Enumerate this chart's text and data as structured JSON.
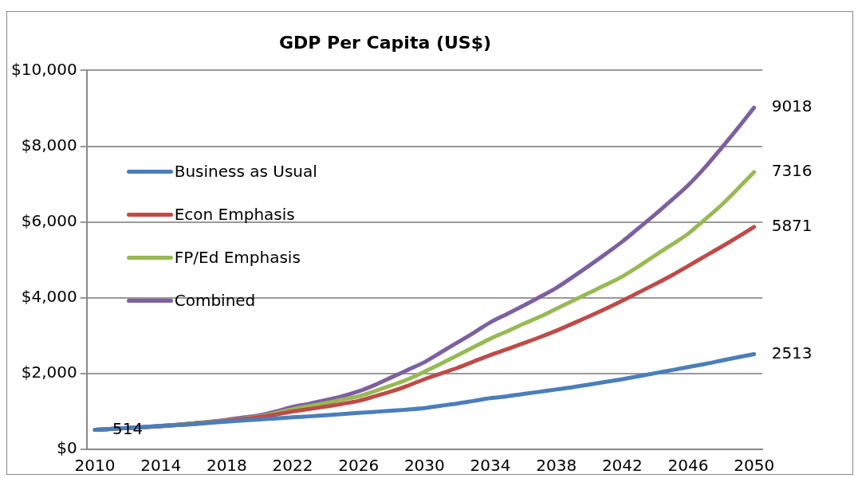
{
  "chart_data": {
    "type": "line",
    "title": "GDP Per Capita (US$)",
    "categories": [
      "2010",
      null,
      null,
      null,
      "2014",
      null,
      null,
      null,
      "2018",
      null,
      null,
      null,
      "2022",
      null,
      null,
      null,
      "2026",
      null,
      null,
      null,
      "2030",
      null,
      null,
      null,
      "2034",
      null,
      null,
      null,
      "2038",
      null,
      null,
      null,
      "2042",
      null,
      null,
      null,
      "2046",
      null,
      null,
      null,
      "2050"
    ],
    "series": [
      {
        "name": "Business as Usual",
        "color": "#4a7ebb",
        "values": [
          514,
          540,
          565,
          590,
          615,
          640,
          665,
          700,
          730,
          760,
          790,
          815,
          845,
          870,
          900,
          930,
          960,
          990,
          1020,
          1050,
          1090,
          1150,
          1210,
          1280,
          1350,
          1400,
          1460,
          1520,
          1580,
          1640,
          1710,
          1780,
          1850,
          1930,
          2010,
          2090,
          2170,
          2250,
          2340,
          2430,
          2513
        ],
        "value_labels": [
          "514",
          null,
          null,
          null,
          null,
          null,
          null,
          null,
          null,
          null,
          null,
          null,
          null,
          null,
          null,
          null,
          null,
          null,
          null,
          null,
          null,
          null,
          null,
          null,
          null,
          null,
          null,
          null,
          null,
          null,
          null,
          null,
          null,
          null,
          null,
          null,
          null,
          null,
          null,
          null,
          "2513"
        ]
      },
      {
        "name": "Econ Emphasis",
        "color": "#be4b48",
        "values": [
          514,
          535,
          560,
          585,
          610,
          640,
          670,
          710,
          750,
          800,
          850,
          920,
          1000,
          1060,
          1130,
          1200,
          1280,
          1400,
          1530,
          1680,
          1850,
          2000,
          2150,
          2320,
          2490,
          2640,
          2800,
          2960,
          3130,
          3320,
          3510,
          3710,
          3920,
          4140,
          4360,
          4590,
          4840,
          5090,
          5340,
          5600,
          5871
        ],
        "value_labels": [
          null,
          null,
          null,
          null,
          null,
          null,
          null,
          null,
          null,
          null,
          null,
          null,
          null,
          null,
          null,
          null,
          null,
          null,
          null,
          null,
          null,
          null,
          null,
          null,
          null,
          null,
          null,
          null,
          null,
          null,
          null,
          null,
          null,
          null,
          null,
          null,
          null,
          null,
          null,
          null,
          "5871"
        ]
      },
      {
        "name": "FP/Ed Emphasis",
        "color": "#98b954",
        "values": [
          514,
          535,
          560,
          585,
          615,
          645,
          680,
          720,
          760,
          810,
          870,
          960,
          1060,
          1140,
          1220,
          1310,
          1400,
          1540,
          1690,
          1850,
          2050,
          2260,
          2480,
          2700,
          2920,
          3110,
          3310,
          3500,
          3710,
          3920,
          4130,
          4340,
          4560,
          4830,
          5120,
          5400,
          5690,
          6060,
          6440,
          6870,
          7316
        ],
        "value_labels": [
          null,
          null,
          null,
          null,
          null,
          null,
          null,
          null,
          null,
          null,
          null,
          null,
          null,
          null,
          null,
          null,
          null,
          null,
          null,
          null,
          null,
          null,
          null,
          null,
          null,
          null,
          null,
          null,
          null,
          null,
          null,
          null,
          null,
          null,
          null,
          null,
          null,
          null,
          null,
          null,
          "7316"
        ]
      },
      {
        "name": "Combined",
        "color": "#7d60a0",
        "values": [
          514,
          540,
          565,
          590,
          620,
          650,
          690,
          730,
          780,
          840,
          900,
          1000,
          1120,
          1200,
          1300,
          1400,
          1530,
          1700,
          1900,
          2100,
          2300,
          2560,
          2820,
          3080,
          3350,
          3570,
          3790,
          4020,
          4260,
          4550,
          4850,
          5160,
          5480,
          5840,
          6200,
          6580,
          6970,
          7430,
          7940,
          8470,
          9018
        ],
        "value_labels": [
          null,
          null,
          null,
          null,
          null,
          null,
          null,
          null,
          null,
          null,
          null,
          null,
          null,
          null,
          null,
          null,
          null,
          null,
          null,
          null,
          null,
          null,
          null,
          null,
          null,
          null,
          null,
          null,
          null,
          null,
          null,
          null,
          null,
          null,
          null,
          null,
          null,
          null,
          null,
          null,
          "9018"
        ]
      }
    ],
    "ylim": [
      0,
      10000
    ],
    "yticks": [
      {
        "value": 0,
        "label": "$0"
      },
      {
        "value": 2000,
        "label": "$2,000"
      },
      {
        "value": 4000,
        "label": "$4,000"
      },
      {
        "value": 6000,
        "label": "$6,000"
      },
      {
        "value": 8000,
        "label": "$8,000"
      },
      {
        "value": 10000,
        "label": "$10,000"
      }
    ],
    "grid": "y",
    "legend": "left",
    "marker": "none",
    "line_style": "solid"
  }
}
